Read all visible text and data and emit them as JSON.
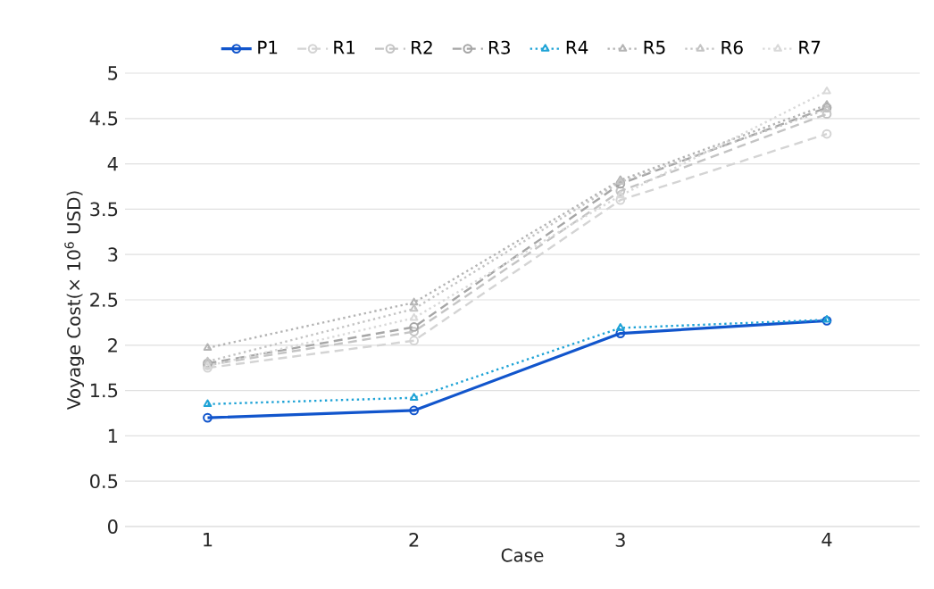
{
  "chart_data": {
    "type": "line",
    "xlabel": "Case",
    "ylabel": "Voyage Cost(× 10$^{6}$ USD)",
    "categories": [
      "1",
      "2",
      "3",
      "4"
    ],
    "series": [
      {
        "name": "P1",
        "color": "#1155cc",
        "values": [
          1.2,
          1.28,
          2.13,
          2.27
        ],
        "marker": "circle",
        "line_style": "solid"
      },
      {
        "name": "R1",
        "color": "#d4d4d4",
        "values": [
          1.75,
          2.05,
          3.6,
          4.33
        ],
        "marker": "circle",
        "line_style": "dashed"
      },
      {
        "name": "R2",
        "color": "#c4c4c4",
        "values": [
          1.78,
          2.15,
          3.7,
          4.55
        ],
        "marker": "circle",
        "line_style": "dashed"
      },
      {
        "name": "R3",
        "color": "#a6a6a6",
        "values": [
          1.8,
          2.2,
          3.78,
          4.62
        ],
        "marker": "circle",
        "line_style": "dashed"
      },
      {
        "name": "R4",
        "color": "#1fa3d6",
        "values": [
          1.35,
          1.42,
          2.19,
          2.28
        ],
        "marker": "triangle",
        "line_style": "dotted"
      },
      {
        "name": "R5",
        "color": "#b4b4b4",
        "values": [
          1.97,
          2.47,
          3.82,
          4.65
        ],
        "marker": "triangle",
        "line_style": "dotted"
      },
      {
        "name": "R6",
        "color": "#c4c4c4",
        "values": [
          1.82,
          2.4,
          3.8,
          4.6
        ],
        "marker": "triangle",
        "line_style": "dotted"
      },
      {
        "name": "R7",
        "color": "#d9d9d9",
        "values": [
          1.77,
          2.3,
          3.65,
          4.8
        ],
        "marker": "triangle",
        "line_style": "dotted"
      }
    ],
    "ylim": [
      0,
      5
    ],
    "yticks": [
      0,
      0.5,
      1,
      1.5,
      2,
      2.5,
      3,
      3.5,
      4,
      4.5,
      5
    ],
    "grid": "y",
    "legend": "top"
  }
}
